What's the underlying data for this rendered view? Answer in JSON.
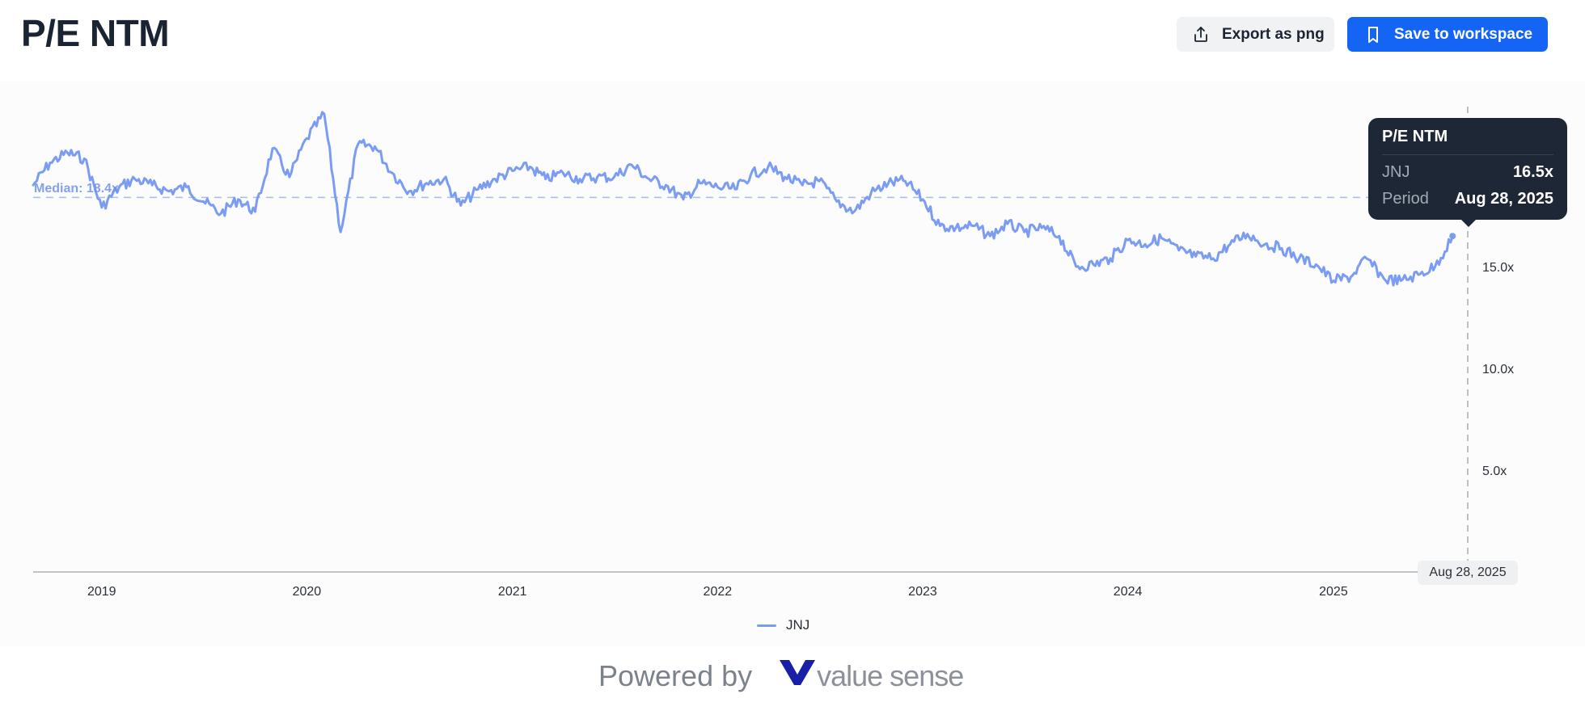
{
  "header": {
    "title": "P/E NTM",
    "export_label": "Export as png",
    "save_label": "Save to workspace"
  },
  "colors": {
    "series": "#7b9cf3",
    "save_button": "#1565f5",
    "tooltip_bg": "#1e2736",
    "title": "#1b2433"
  },
  "icons": {
    "export": "share-upload-icon",
    "save": "bookmark-icon",
    "brand": "value-sense-v-logo"
  },
  "tooltip": {
    "title": "P/E NTM",
    "series_label": "JNJ",
    "series_value": "16.5x",
    "period_label": "Period",
    "period_value": "Aug 28, 2025"
  },
  "crosshair_date": "Aug 28, 2025",
  "median_label": "Median: 18.4x",
  "legend": [
    {
      "name": "JNJ"
    }
  ],
  "footer": {
    "powered_by": "Powered by",
    "brand": "value sense"
  },
  "chart_data": {
    "type": "line",
    "title": "P/E NTM",
    "xlabel": "",
    "ylabel": "",
    "grid": false,
    "legend_position": "bottom",
    "x_range": [
      "2018-09",
      "2025-08-28"
    ],
    "ylim": [
      0,
      22.5
    ],
    "y_ticks": [
      "5.0x",
      "10.0x",
      "15.0x"
    ],
    "x_ticks": [
      "2019",
      "2020",
      "2021",
      "2022",
      "2023",
      "2024",
      "2025"
    ],
    "median": 18.4,
    "series": [
      {
        "name": "JNJ",
        "x": [
          "2018-09",
          "2018-10",
          "2018-11",
          "2018-12",
          "2019-01",
          "2019-02",
          "2019-03",
          "2019-04",
          "2019-05",
          "2019-06",
          "2019-07",
          "2019-08",
          "2019-09",
          "2019-10",
          "2019-11",
          "2019-12",
          "2020-01",
          "2020-02",
          "2020-03",
          "2020-04",
          "2020-05",
          "2020-06",
          "2020-07",
          "2020-08",
          "2020-09",
          "2020-10",
          "2020-11",
          "2020-12",
          "2021-01",
          "2021-02",
          "2021-03",
          "2021-04",
          "2021-05",
          "2021-06",
          "2021-07",
          "2021-08",
          "2021-09",
          "2021-10",
          "2021-11",
          "2021-12",
          "2022-01",
          "2022-02",
          "2022-03",
          "2022-04",
          "2022-05",
          "2022-06",
          "2022-07",
          "2022-08",
          "2022-09",
          "2022-10",
          "2022-11",
          "2022-12",
          "2023-01",
          "2023-02",
          "2023-03",
          "2023-04",
          "2023-05",
          "2023-06",
          "2023-07",
          "2023-08",
          "2023-09",
          "2023-10",
          "2023-11",
          "2023-12",
          "2024-01",
          "2024-02",
          "2024-03",
          "2024-04",
          "2024-05",
          "2024-06",
          "2024-07",
          "2024-08",
          "2024-09",
          "2024-10",
          "2024-11",
          "2024-12",
          "2025-01",
          "2025-02",
          "2025-03",
          "2025-04",
          "2025-05",
          "2025-06",
          "2025-07",
          "2025-08"
        ],
        "values": [
          19.0,
          20.1,
          20.6,
          20.3,
          17.9,
          18.9,
          19.3,
          19.0,
          18.7,
          18.9,
          18.2,
          17.6,
          18.3,
          17.7,
          20.8,
          19.4,
          21.3,
          22.5,
          16.7,
          21.0,
          20.9,
          19.6,
          18.7,
          19.1,
          19.3,
          18.0,
          18.8,
          19.3,
          19.7,
          19.9,
          19.3,
          19.6,
          19.3,
          19.4,
          19.4,
          20.0,
          19.3,
          19.0,
          18.3,
          19.1,
          18.9,
          18.8,
          19.5,
          19.9,
          19.4,
          19.0,
          19.2,
          18.2,
          17.7,
          18.6,
          19.1,
          19.2,
          18.3,
          17.0,
          16.9,
          17.0,
          16.5,
          17.1,
          16.7,
          16.9,
          16.5,
          15.0,
          15.1,
          15.4,
          16.3,
          16.1,
          16.4,
          15.8,
          15.5,
          15.4,
          16.1,
          16.6,
          16.1,
          15.9,
          15.4,
          15.1,
          14.3,
          14.5,
          15.4,
          14.4,
          14.3,
          14.6,
          15.0,
          16.5
        ]
      }
    ]
  }
}
